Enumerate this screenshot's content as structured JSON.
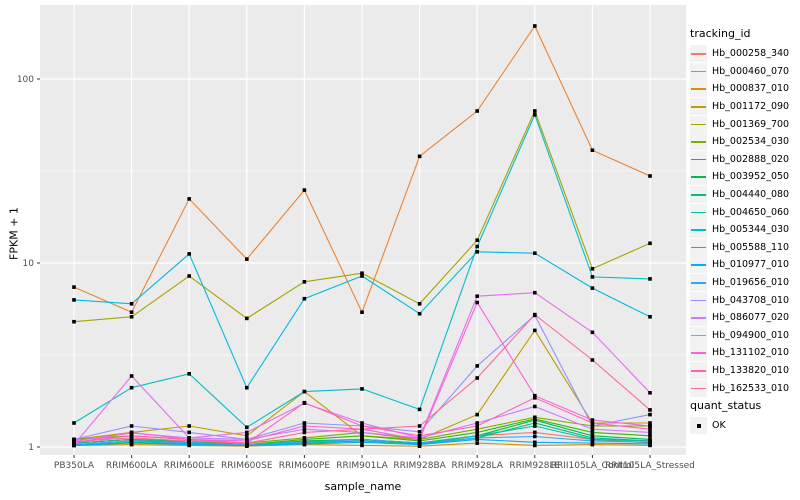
{
  "chart_data": {
    "type": "line",
    "title": "",
    "xlabel": "sample_name",
    "ylabel": "FPKM + 1",
    "y_scale": "log10",
    "y_ticks": [
      1,
      10,
      100
    ],
    "y_minor_ticks": [
      3.1623,
      31.623
    ],
    "ylim": [
      0.9,
      250
    ],
    "grid": "on",
    "legend_position": "right",
    "point_shape": "filled-square",
    "point_color": "#000000",
    "panel_bg": "#EBEBEB",
    "grid_color": "#FFFFFF",
    "tick_label_color": "#4D4D4D",
    "categories": [
      "PB350LA",
      "RRIM600LA",
      "RRIM600LE",
      "RRIM600SE",
      "RRIM600PE",
      "RRIM901LA",
      "RRIM928BA",
      "RRIM928LA",
      "RRIM928LE",
      "RRII105LA_Control",
      "RRII105LA_Stressed"
    ],
    "series": [
      {
        "name": "Hb_000258_340",
        "color": "#F8766D",
        "values": [
          1.05,
          1.1,
          1.05,
          1.02,
          1.08,
          1.1,
          1.05,
          1.15,
          1.2,
          1.1,
          1.05
        ]
      },
      {
        "name": "Hb_000460_070",
        "color": "#EA8331",
        "values": [
          7.4,
          5.4,
          22.3,
          10.5,
          24.9,
          5.4,
          38,
          67,
          194,
          41,
          29.7
        ]
      },
      {
        "name": "Hb_000837_010",
        "color": "#D89000",
        "values": [
          1.02,
          1.03,
          1.02,
          1.01,
          1.03,
          1.02,
          1.01,
          1.05,
          1.02,
          1.03,
          1.02
        ]
      },
      {
        "name": "Hb_001172_090",
        "color": "#C09B00",
        "values": [
          1.1,
          1.2,
          1.3,
          1.15,
          2.0,
          1.15,
          1.1,
          1.5,
          4.3,
          1.35,
          1.35
        ]
      },
      {
        "name": "Hb_001369_700",
        "color": "#A3A500",
        "values": [
          4.8,
          5.1,
          8.5,
          5.0,
          7.9,
          8.8,
          6.0,
          13.3,
          67,
          9.3,
          12.8
        ]
      },
      {
        "name": "Hb_002534_030",
        "color": "#7CAE00",
        "values": [
          1.1,
          1.15,
          1.1,
          1.05,
          1.12,
          1.2,
          1.1,
          1.25,
          1.45,
          1.3,
          1.3
        ]
      },
      {
        "name": "Hb_002888_020",
        "color": "#39B600",
        "values": [
          1.05,
          1.1,
          1.08,
          1.03,
          1.1,
          1.15,
          1.08,
          1.2,
          1.42,
          1.2,
          1.15
        ]
      },
      {
        "name": "Hb_003952_050",
        "color": "#00BB4E",
        "values": [
          1.03,
          1.08,
          1.05,
          1.02,
          1.08,
          1.1,
          1.05,
          1.15,
          1.4,
          1.15,
          1.1
        ]
      },
      {
        "name": "Hb_004440_080",
        "color": "#00BF7D",
        "values": [
          1.02,
          1.06,
          1.04,
          1.02,
          1.05,
          1.08,
          1.04,
          1.12,
          1.35,
          1.12,
          1.08
        ]
      },
      {
        "name": "Hb_004650_060",
        "color": "#00C1A3",
        "values": [
          1.05,
          1.1,
          1.06,
          1.03,
          1.07,
          1.1,
          1.05,
          1.15,
          1.3,
          1.1,
          1.08
        ]
      },
      {
        "name": "Hb_005344_030",
        "color": "#00BFC4",
        "values": [
          1.35,
          2.1,
          2.5,
          1.28,
          2.0,
          2.07,
          1.6,
          12.3,
          64,
          8.4,
          8.2
        ]
      },
      {
        "name": "Hb_005588_110",
        "color": "#00BAE0",
        "values": [
          6.3,
          6.0,
          11.2,
          2.1,
          6.4,
          8.5,
          5.3,
          11.5,
          11.3,
          7.3,
          5.1
        ]
      },
      {
        "name": "Hb_010977_010",
        "color": "#00B0F6",
        "values": [
          1.02,
          1.05,
          1.03,
          1.02,
          1.04,
          1.06,
          1.03,
          1.1,
          1.06,
          1.05,
          1.04
        ]
      },
      {
        "name": "Hb_019656_010",
        "color": "#35A2FF",
        "values": [
          1.03,
          1.08,
          1.05,
          1.03,
          1.06,
          1.1,
          1.05,
          1.12,
          1.14,
          1.08,
          1.06
        ]
      },
      {
        "name": "Hb_043708_010",
        "color": "#9590FF",
        "values": [
          1.1,
          1.3,
          1.2,
          1.1,
          1.35,
          1.3,
          1.21,
          2.76,
          5.2,
          1.3,
          1.5
        ]
      },
      {
        "name": "Hb_086077_020",
        "color": "#C77CFF",
        "values": [
          1.08,
          1.19,
          1.12,
          1.1,
          1.25,
          1.2,
          1.12,
          1.35,
          1.66,
          1.25,
          1.2
        ]
      },
      {
        "name": "Hb_094900_010",
        "color": "#E76BF3",
        "values": [
          1.03,
          2.43,
          1.12,
          1.2,
          1.73,
          1.35,
          1.12,
          6.6,
          6.9,
          4.2,
          1.97
        ]
      },
      {
        "name": "Hb_131102_010",
        "color": "#FA62DB",
        "values": [
          1.05,
          1.2,
          1.1,
          1.08,
          1.3,
          1.25,
          1.1,
          6.1,
          1.9,
          1.4,
          1.3
        ]
      },
      {
        "name": "Hb_133820_010",
        "color": "#FF62BC",
        "values": [
          1.06,
          1.15,
          1.1,
          1.05,
          1.74,
          1.3,
          1.15,
          1.3,
          1.85,
          1.35,
          1.25
        ]
      },
      {
        "name": "Hb_162533_010",
        "color": "#FF6A98",
        "values": [
          1.07,
          1.12,
          1.08,
          1.05,
          1.2,
          1.25,
          1.3,
          2.37,
          5.24,
          2.97,
          1.59
        ]
      }
    ]
  },
  "legend": {
    "tracking_title": "tracking_id",
    "quant_title": "quant_status",
    "quant_items": [
      {
        "label": "OK"
      }
    ]
  }
}
